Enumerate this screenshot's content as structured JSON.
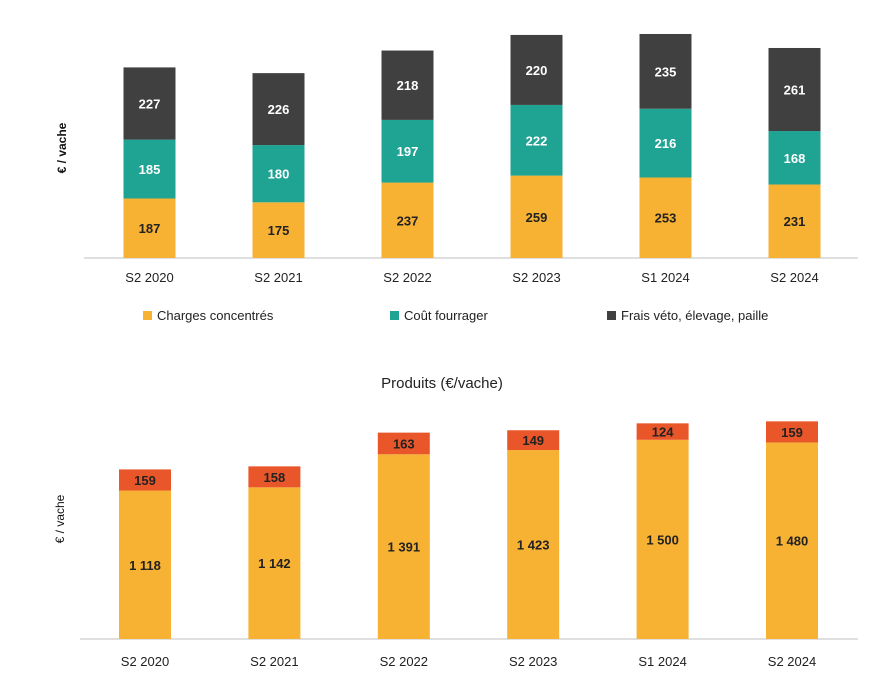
{
  "chart_data": [
    {
      "type": "bar",
      "stacked": true,
      "title": "",
      "ylabel": "€ / vache",
      "categories": [
        "S2 2020",
        "S2 2021",
        "S2 2022",
        "S2 2023",
        "S1 2024",
        "S2 2024"
      ],
      "series": [
        {
          "name": "Charges concentrés",
          "color": "#F7B133",
          "label_color": "#222222",
          "values": [
            187,
            175,
            237,
            259,
            253,
            231
          ]
        },
        {
          "name": "Coût fourrager",
          "color": "#1FA393",
          "label_color": "#ffffff",
          "values": [
            185,
            180,
            197,
            222,
            216,
            168
          ]
        },
        {
          "name": "Frais véto, élevage, paille",
          "color": "#404040",
          "label_color": "#ffffff",
          "values": [
            227,
            226,
            218,
            220,
            235,
            261
          ]
        }
      ],
      "labels": [
        [
          "187",
          "175",
          "237",
          "259",
          "253",
          "231"
        ],
        [
          "185",
          "180",
          "197",
          "222",
          "216",
          "168"
        ],
        [
          "227",
          "226",
          "218",
          "220",
          "235",
          "261"
        ]
      ],
      "legend_position": "bottom",
      "grid": false
    },
    {
      "type": "bar",
      "stacked": true,
      "title": "Produits (€/vache)",
      "ylabel": "€ / vache",
      "categories": [
        "S2 2020",
        "S2 2021",
        "S2 2022",
        "S2 2023",
        "S1 2024",
        "S2 2024"
      ],
      "series": [
        {
          "name": "",
          "color": "#F7B133",
          "label_color": "#222222",
          "values": [
            1118,
            1142,
            1391,
            1423,
            1500,
            1480
          ]
        },
        {
          "name": "",
          "color": "#E8562A",
          "label_color": "#222222",
          "values": [
            159,
            158,
            163,
            149,
            124,
            159
          ]
        }
      ],
      "labels": [
        [
          "1 118",
          "1 142",
          "1 391",
          "1 423",
          "1 500",
          "1 480"
        ],
        [
          "159",
          "158",
          "163",
          "149",
          "124",
          "159"
        ]
      ],
      "legend_position": "none",
      "grid": false
    }
  ]
}
